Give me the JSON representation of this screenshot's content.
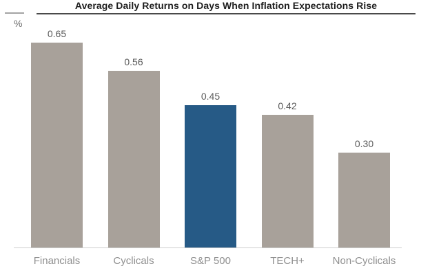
{
  "header": {
    "title": "Average Daily Returns on Days When Inflation Expectations Rise"
  },
  "axis": {
    "unit_label": "%"
  },
  "chart_data": {
    "type": "bar",
    "title": "Average Daily Returns on Days When Inflation Expectations Rise",
    "categories": [
      "Financials",
      "Cyclicals",
      "S&P 500",
      "TECH+",
      "Non-Cyclicals"
    ],
    "values": [
      0.65,
      0.56,
      0.45,
      0.42,
      0.3
    ],
    "value_labels": [
      "0.65",
      "0.56",
      "0.45",
      "0.42",
      "0.30"
    ],
    "xlabel": "",
    "ylabel": "%",
    "ylim": [
      0,
      0.72
    ],
    "grid": false,
    "legend": "none",
    "highlight_category": "S&P 500",
    "colors": {
      "default_bar": "#a8a19a",
      "highlight_bar": "#265a86",
      "title_text": "#1e1e1e",
      "title_rule": "#4a4a4a",
      "value_label_text": "#595959",
      "category_label_text": "#8f8f8f",
      "baseline": "#cccccc"
    }
  }
}
